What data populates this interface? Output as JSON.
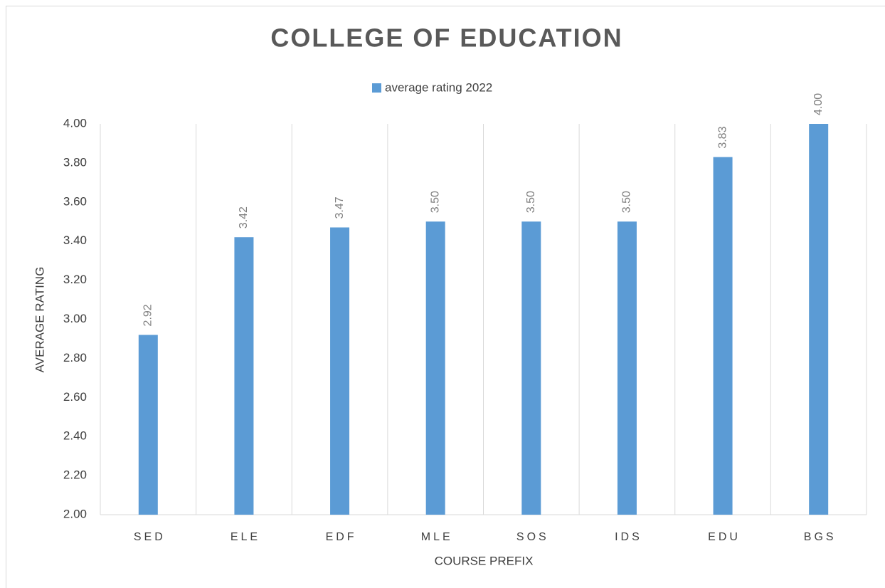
{
  "chart_data": {
    "type": "bar",
    "title": "COLLEGE OF EDUCATION",
    "x_label": "COURSE PREFIX",
    "y_label": "AVERAGE RATING",
    "categories": [
      "SED",
      "ELE",
      "EDF",
      "MLE",
      "SOS",
      "IDS",
      "EDU",
      "BGS"
    ],
    "series": [
      {
        "name": "average rating 2022",
        "color": "#5b9bd5",
        "values": [
          2.92,
          3.42,
          3.47,
          3.5,
          3.5,
          3.5,
          3.83,
          4
        ],
        "value_labels": [
          "2.92",
          "3.42",
          "3.47",
          "3.50",
          "3.50",
          "3.50",
          "3.83",
          "4.00"
        ]
      }
    ],
    "ylim": [
      2,
      4
    ],
    "yticks": [
      {
        "value": 2,
        "label": "2.00"
      },
      {
        "value": 2.2,
        "label": "2.20"
      },
      {
        "value": 2.4,
        "label": "2.40"
      },
      {
        "value": 2.6,
        "label": "2.60"
      },
      {
        "value": 2.8,
        "label": "2.80"
      },
      {
        "value": 3,
        "label": "3.00"
      },
      {
        "value": 3.2,
        "label": "3.20"
      },
      {
        "value": 3.4,
        "label": "3.40"
      },
      {
        "value": 3.6,
        "label": "3.60"
      },
      {
        "value": 3.8,
        "label": "3.80"
      },
      {
        "value": 4,
        "label": "4.00"
      }
    ],
    "grid": true,
    "legend": "top"
  }
}
